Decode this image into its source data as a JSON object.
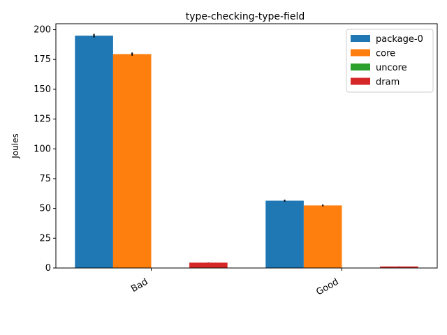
{
  "chart_data": {
    "type": "bar",
    "title": "type-checking-type-field",
    "xlabel": "",
    "ylabel": "Joules",
    "categories": [
      "Bad",
      "Good"
    ],
    "ylim": [
      0,
      205
    ],
    "yticks": [
      0,
      25,
      50,
      75,
      100,
      125,
      150,
      175,
      200
    ],
    "legend_position": "top-right",
    "series": [
      {
        "name": "package-0",
        "values": [
          195.0,
          56.5
        ],
        "errors": [
          1.5,
          0.8
        ],
        "color": "#1f77b4"
      },
      {
        "name": "core",
        "values": [
          179.5,
          52.5
        ],
        "errors": [
          1.3,
          0.8
        ],
        "color": "#ff7f0e"
      },
      {
        "name": "uncore",
        "values": [
          0,
          0
        ],
        "errors": [
          0,
          0
        ],
        "color": "#2ca02c"
      },
      {
        "name": "dram",
        "values": [
          4.5,
          1.3
        ],
        "errors": [
          0.1,
          0.05
        ],
        "color": "#d62728"
      }
    ]
  }
}
